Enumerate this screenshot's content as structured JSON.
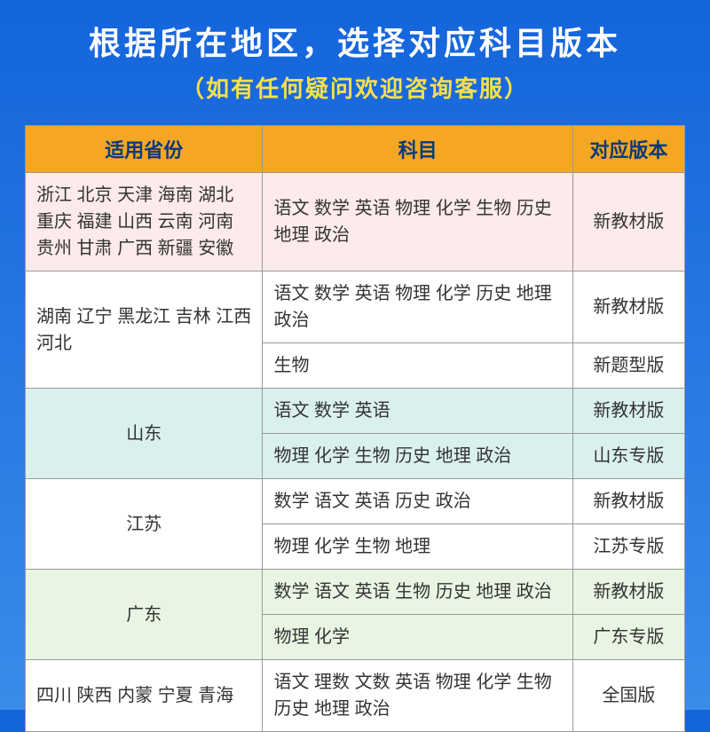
{
  "title": "根据所在地区，选择对应科目版本",
  "subtitle": "（如有任何疑问欢迎咨询客服）",
  "headers": {
    "province": "适用省份",
    "subject": "科目",
    "version": "对应版本"
  },
  "rows": {
    "r1_province": "浙江 北京 天津 海南 湖北 重庆 福建 山西 云南 河南 贵州 甘肃 广西 新疆 安徽",
    "r1_subject": "语文 数学 英语 物理 化学 生物 历史 地理 政治",
    "r1_version": "新教材版",
    "r2_province": "湖南 辽宁 黑龙江 吉林 江西 河北",
    "r2a_subject": "语文 数学 英语 物理 化学 历史 地理 政治",
    "r2a_version": "新教材版",
    "r2b_subject": "生物",
    "r2b_version": "新题型版",
    "r3_province": "山东",
    "r3a_subject": "语文  数学 英语",
    "r3a_version": "新教材版",
    "r3b_subject": "物理 化学 生物 历史 地理 政治",
    "r3b_version": "山东专版",
    "r4_province": "江苏",
    "r4a_subject": "数学 语文 英语 历史 政治",
    "r4a_version": "新教材版",
    "r4b_subject": "物理 化学 生物 地理",
    "r4b_version": "江苏专版",
    "r5_province": "广东",
    "r5a_subject": "数学 语文 英语 生物 历史 地理 政治",
    "r5a_version": "新教材版",
    "r5b_subject": "物理 化学",
    "r5b_version": "广东专版",
    "r6_province": "四川 陕西 内蒙 宁夏 青海",
    "r6_subject": "语文 理数 文数 英语 物理 化学 生物 历史 地理 政治",
    "r6_version": "全国版"
  },
  "style": {
    "bg_gradient_top": "#1464dc",
    "bg_gradient_bottom": "#3a8ce8",
    "title_color": "#ffffff",
    "subtitle_color": "#f8e04a",
    "header_bg": "#f5a623",
    "header_text": "#0a3a7a",
    "province_text": "#d41c1c",
    "border_color": "#999999",
    "row_bg_pink": "#fdeaea",
    "row_bg_white": "#ffffff",
    "row_bg_teal": "#daf0ef",
    "row_bg_mint": "#e8f5e3",
    "title_fontsize": 36,
    "subtitle_fontsize": 26,
    "header_fontsize": 22,
    "cell_fontsize": 20
  }
}
